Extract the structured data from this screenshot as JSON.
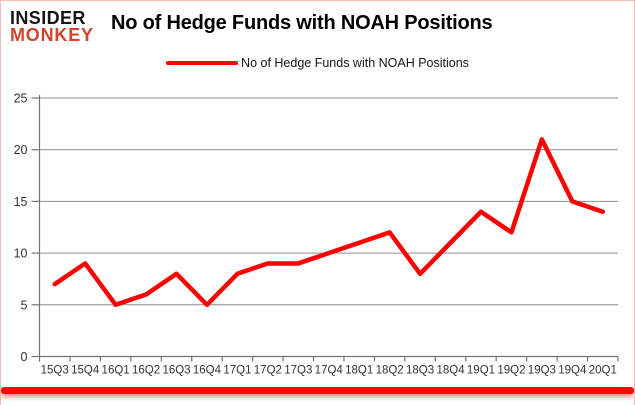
{
  "brand": {
    "line1": "INSIDER",
    "line2": "MONKEY"
  },
  "colors": {
    "series": "#ff0000",
    "brand_red": "#d0442e",
    "grid": "#8c8c8c",
    "axis": "#737373",
    "tick_label": "#333333",
    "frame_pink": "#f2bdb2"
  },
  "chart_data": {
    "type": "line",
    "title": "No of Hedge Funds with NOAH Positions",
    "categories": [
      "15Q3",
      "15Q4",
      "16Q1",
      "16Q2",
      "16Q3",
      "16Q4",
      "17Q1",
      "17Q2",
      "17Q3",
      "17Q4",
      "18Q1",
      "18Q2",
      "18Q3",
      "18Q4",
      "19Q1",
      "19Q2",
      "19Q3",
      "19Q4",
      "20Q1"
    ],
    "series": [
      {
        "name": "No of Hedge Funds with NOAH Positions",
        "values": [
          7,
          9,
          5,
          6,
          8,
          5,
          8,
          9,
          9,
          10,
          11,
          12,
          8,
          11,
          14,
          12,
          21,
          15,
          14
        ]
      }
    ],
    "xlabel": "",
    "ylabel": "",
    "ylim": [
      0,
      25
    ],
    "yticks": [
      0,
      5,
      10,
      15,
      20,
      25
    ],
    "grid": "horizontal",
    "legend_position": "top"
  }
}
